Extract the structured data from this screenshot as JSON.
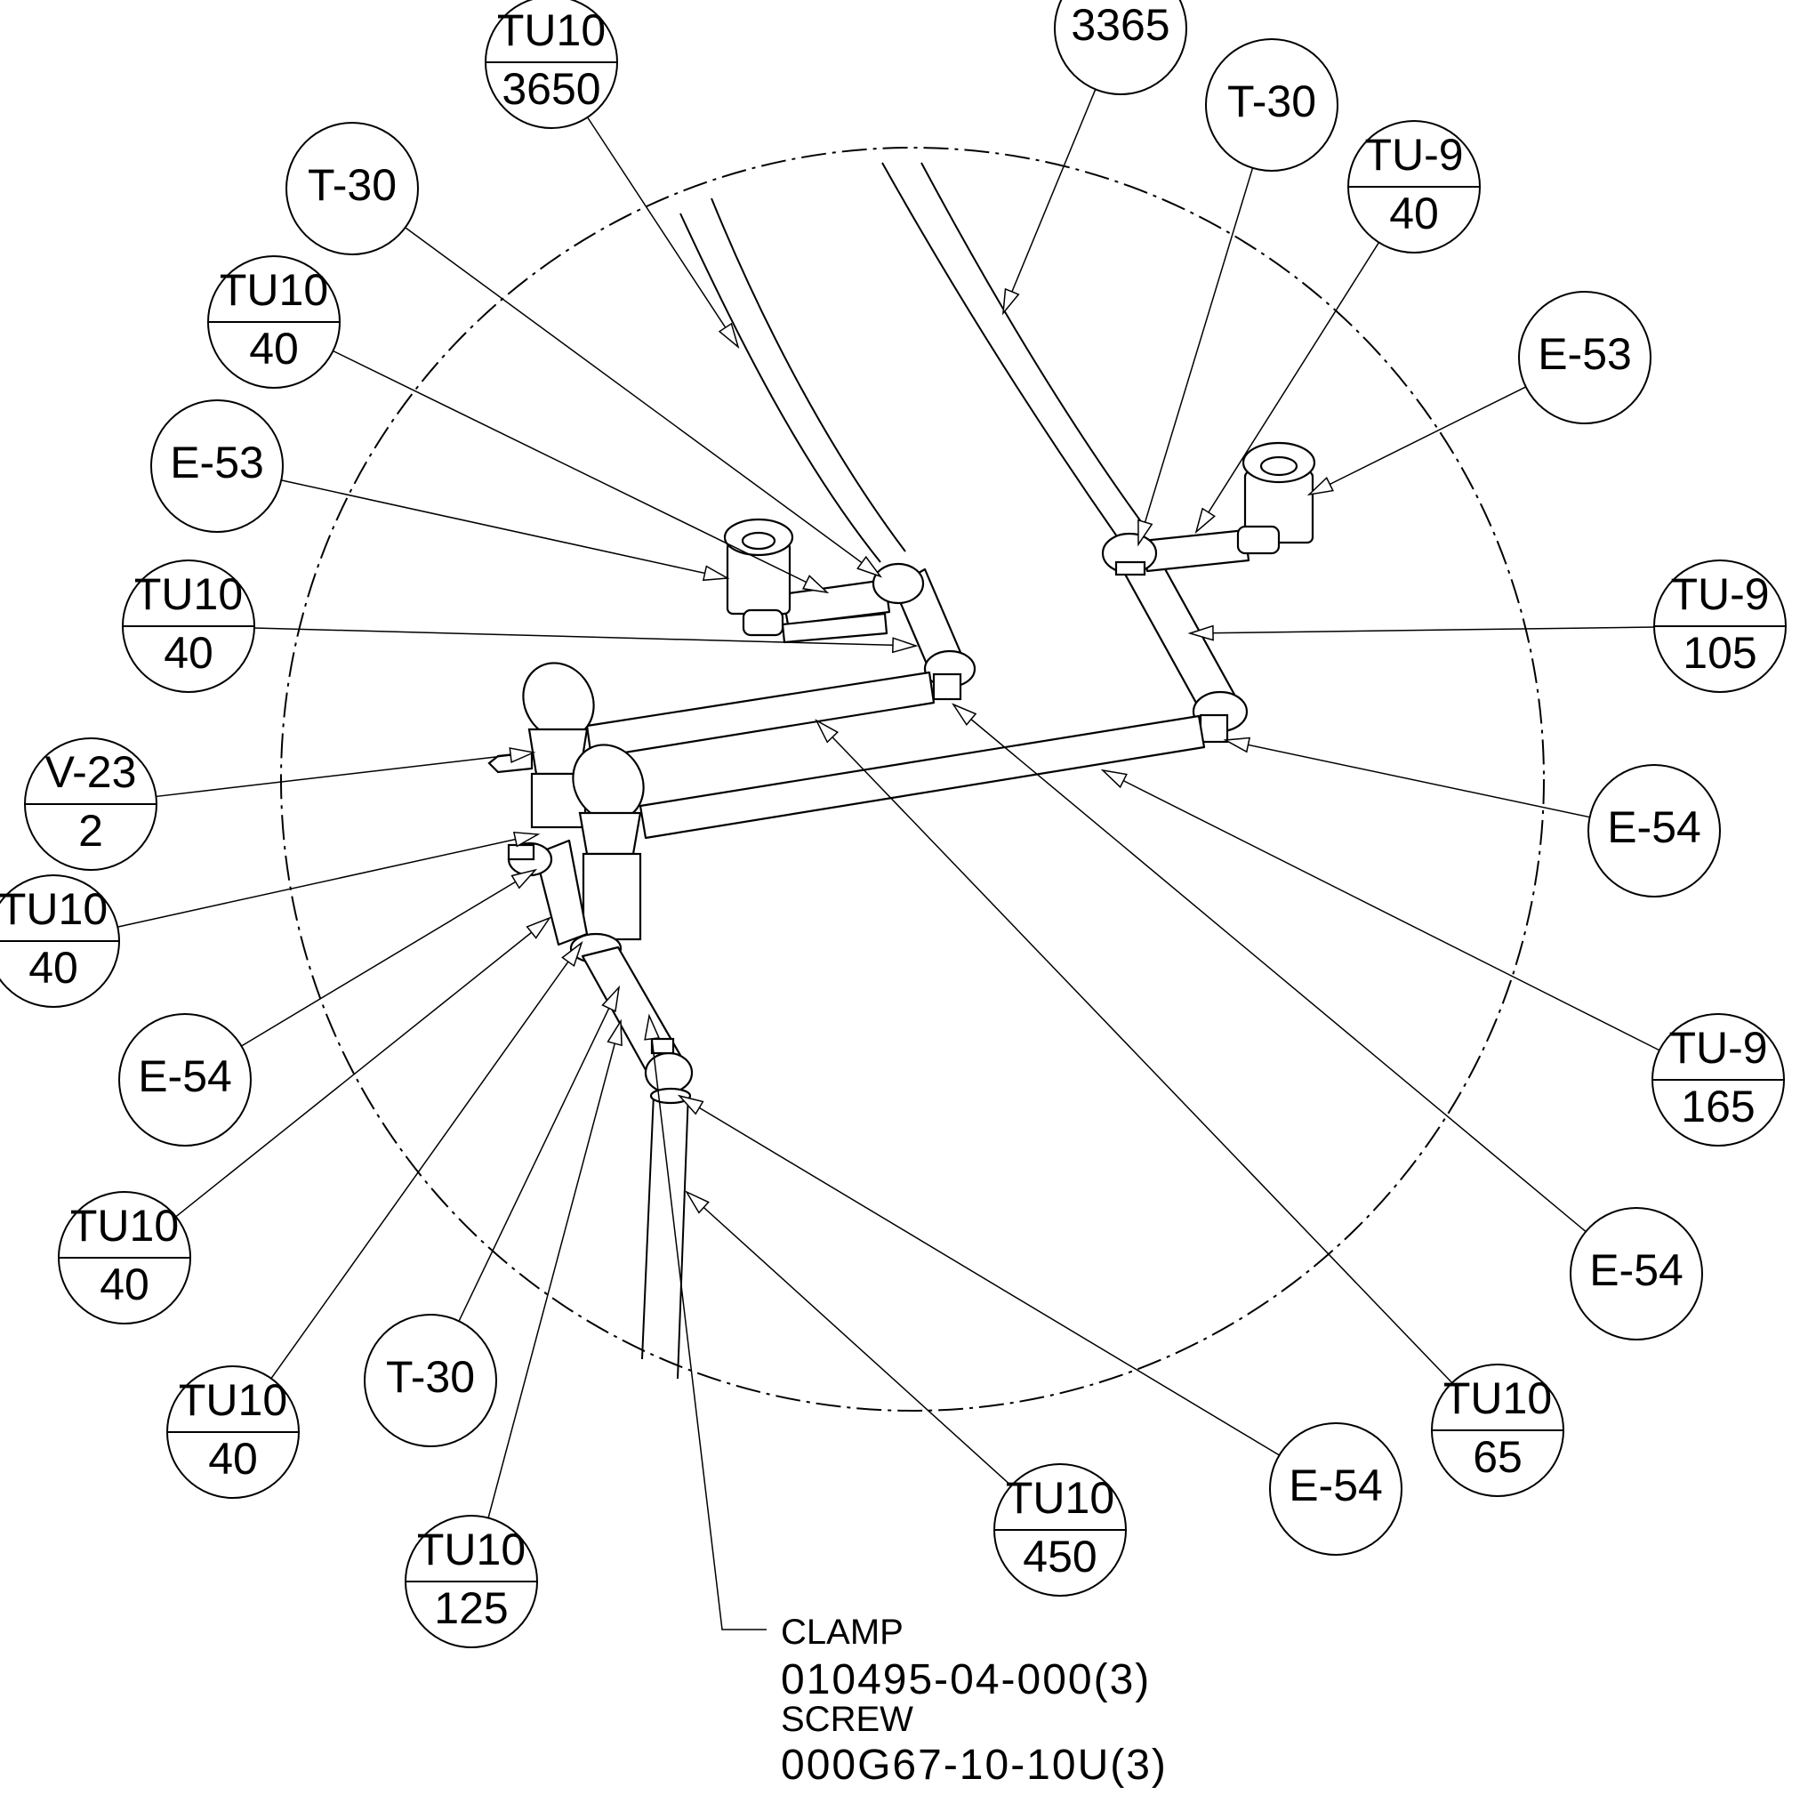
{
  "callouts": [
    {
      "id": "tu10-3650",
      "top": "TU10",
      "bottom": "3650"
    },
    {
      "id": "c-3365",
      "top": "",
      "bottom": "3365"
    },
    {
      "id": "t30-a",
      "top": "T-30",
      "bottom": ""
    },
    {
      "id": "tu9-40",
      "top": "TU-9",
      "bottom": "40"
    },
    {
      "id": "t30-b",
      "top": "T-30",
      "bottom": ""
    },
    {
      "id": "tu10-40-a",
      "top": "TU10",
      "bottom": "40"
    },
    {
      "id": "e53-right",
      "top": "E-53",
      "bottom": ""
    },
    {
      "id": "e53-left",
      "top": "E-53",
      "bottom": ""
    },
    {
      "id": "tu10-40-b",
      "top": "TU10",
      "bottom": "40"
    },
    {
      "id": "tu9-105",
      "top": "TU-9",
      "bottom": "105"
    },
    {
      "id": "v23-2",
      "top": "V-23",
      "bottom": "2"
    },
    {
      "id": "e54-right",
      "top": "E-54",
      "bottom": ""
    },
    {
      "id": "tu10-40-c",
      "top": "TU10",
      "bottom": "40"
    },
    {
      "id": "tu9-165",
      "top": "TU-9",
      "bottom": "165"
    },
    {
      "id": "e54-left",
      "top": "E-54",
      "bottom": ""
    },
    {
      "id": "tu10-40-d",
      "top": "TU10",
      "bottom": "40"
    },
    {
      "id": "e54-lower-right",
      "top": "E-54",
      "bottom": ""
    },
    {
      "id": "tu10-40-e",
      "top": "TU10",
      "bottom": "40"
    },
    {
      "id": "t30-c",
      "top": "T-30",
      "bottom": ""
    },
    {
      "id": "tu10-65",
      "top": "TU10",
      "bottom": "65"
    },
    {
      "id": "e54-bottom",
      "top": "E-54",
      "bottom": ""
    },
    {
      "id": "tu10-450",
      "top": "TU10",
      "bottom": "450"
    },
    {
      "id": "tu10-125",
      "top": "TU10",
      "bottom": "125"
    }
  ],
  "note": {
    "clamp_label": "CLAMP",
    "clamp_part": "010495-04-000(3)",
    "screw_label": "SCREW",
    "screw_part": "000G67-10-10U(3)"
  }
}
